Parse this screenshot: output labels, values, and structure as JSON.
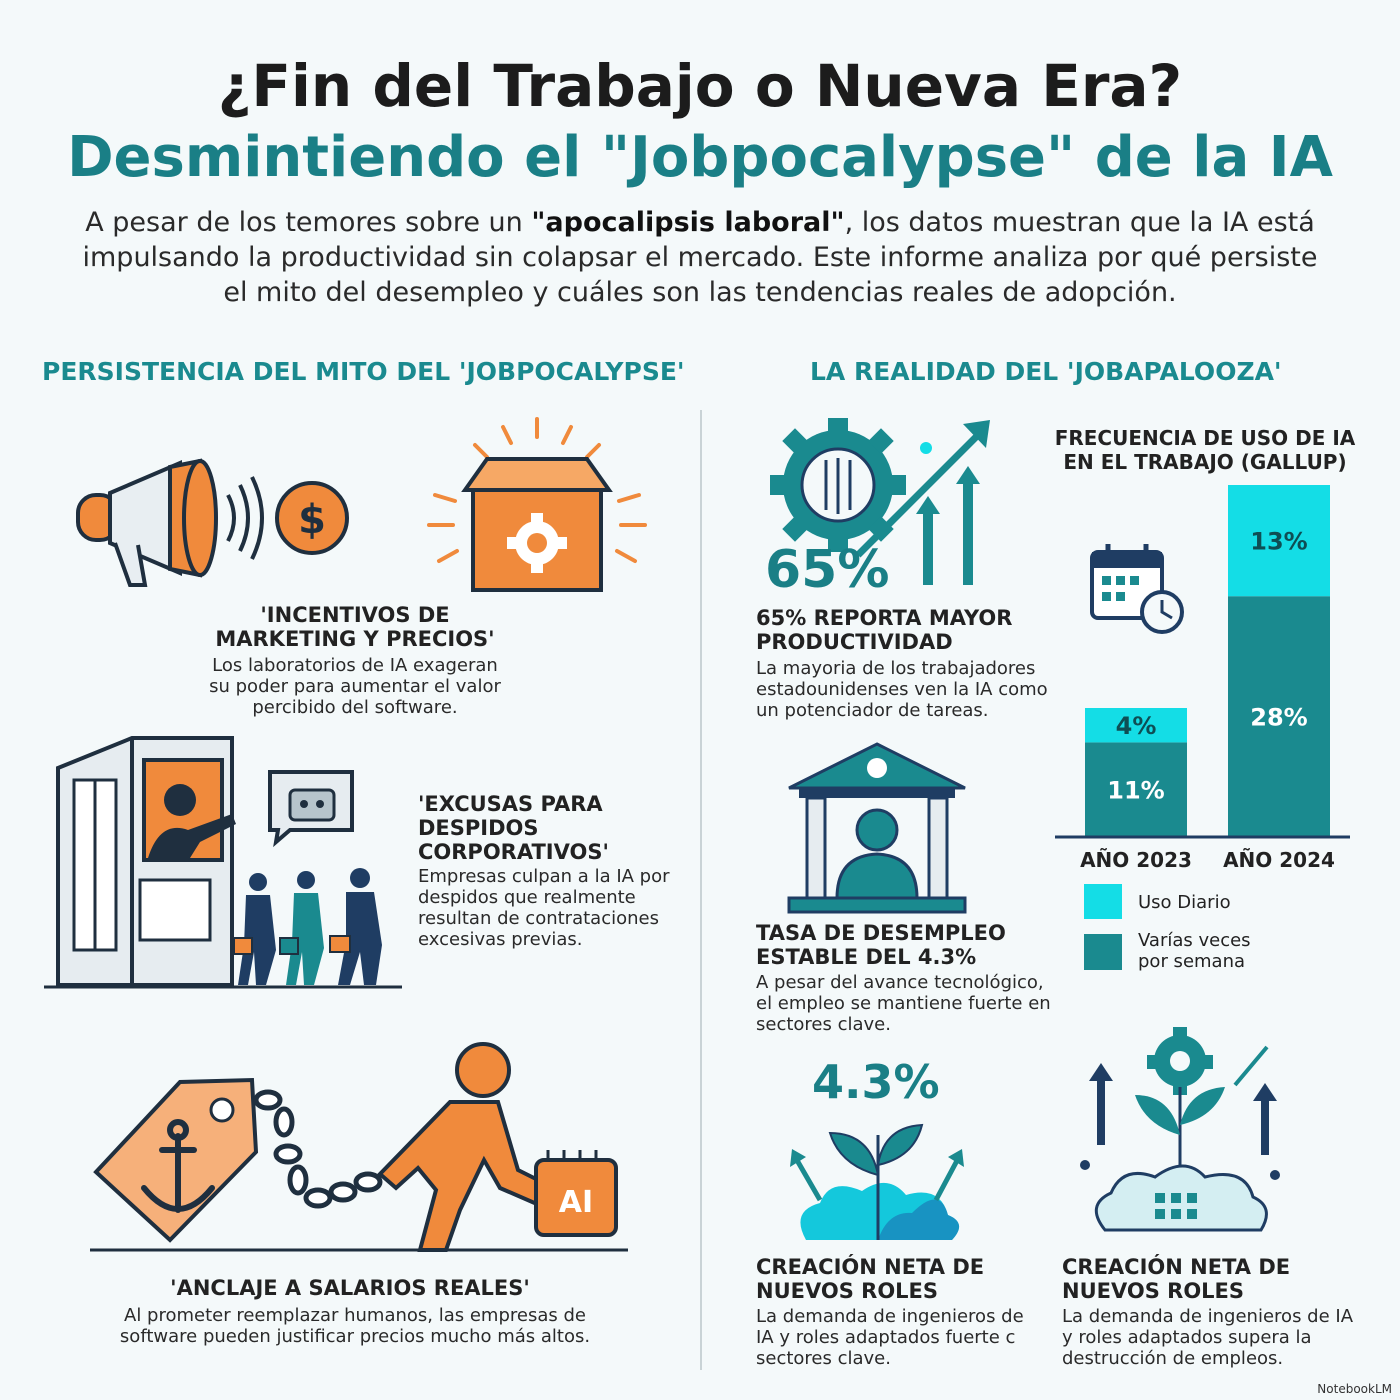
{
  "header": {
    "title_line1": "¿Fin del Trabajo o Nueva Era?",
    "title_line2": "Desmintiendo el \"Jobpocalypse\" de la IA",
    "intro_pre": "A pesar de los temores sobre un ",
    "intro_bold": "\"apocalipsis laboral\"",
    "intro_post": ", los datos muestran que la IA está impulsando la productividad sin colapsar el mercado. Este informe analiza por qué persiste el mito del desempleo y cuáles son las tendencias reales de adopción."
  },
  "left": {
    "section_title": "PERSISTENCIA DEL MITO DEL 'JOBPOCALYPSE'",
    "items": [
      {
        "title": "'INCENTIVOS DE MARKETING Y PRECIOS'",
        "text": "Los laboratorios de IA exageran su poder para aumentar el valor percibido del software."
      },
      {
        "title": "'EXCUSAS PARA DESPIDOS CORPORATIVOS'",
        "text": "Empresas culpan a la IA por despidos que realmente resultan de contrataciones excesivas previas."
      },
      {
        "title": "'ANCLAJE A SALARIOS REALES'",
        "text": "Al prometer reemplazar humanos, las empresas de software pueden justificar precios mucho más altos."
      }
    ],
    "icon_labels": {
      "dollar": "$",
      "ai_chip": "AI"
    }
  },
  "right": {
    "section_title": "LA REALIDAD DEL 'JOBAPALOOZA'",
    "stat_65": "65%",
    "item_productivity": {
      "title": "65% REPORTA MAYOR PRODUCTIVIDAD",
      "text": "La mayoria de los trabajadores estadounidenses ven la IA como un potenciador de tareas."
    },
    "item_unemployment": {
      "title": "TASA DE DESEMPLEO ESTABLE DEL 4.3%",
      "text": "A pesar del avance tecnológico, el empleo se mantiene fuerte en sectores clave."
    },
    "stat_43": "4.3%",
    "item_roles_1": {
      "title": "CREACIÓN NETA DE NUEVOS ROLES",
      "text": "La demanda de ingenieros de IA y roles adaptados fuerte c sectores clave."
    },
    "item_roles_2": {
      "title": "CREACIÓN NETA DE NUEVOS ROLES",
      "text": "La demanda de ingenieros de IA y roles adaptados supera la destrucción de empleos."
    }
  },
  "chart_data": {
    "type": "bar",
    "stacked": true,
    "title": "FRECUENCIA DE USO DE IA EN EL TRABAJO (GALLUP)",
    "categories": [
      "AÑO 2023",
      "AÑO 2024"
    ],
    "series": [
      {
        "name": "Varías veces por semana",
        "values": [
          11,
          28
        ],
        "color": "#1a8a8f",
        "labels": [
          "11%",
          "28%"
        ]
      },
      {
        "name": "Uso Diario",
        "values": [
          4,
          13
        ],
        "color": "#14dde6",
        "labels": [
          "4%",
          "13%"
        ]
      }
    ],
    "legend": [
      "Uso Diario",
      "Varías veces por semana"
    ],
    "legend_position": "bottom"
  },
  "colors": {
    "teal": "#1a7f86",
    "cyan": "#14dde6",
    "orange": "#f08a3c",
    "navy": "#1f3d63"
  },
  "footer": {
    "brand": "NotebookLM"
  }
}
